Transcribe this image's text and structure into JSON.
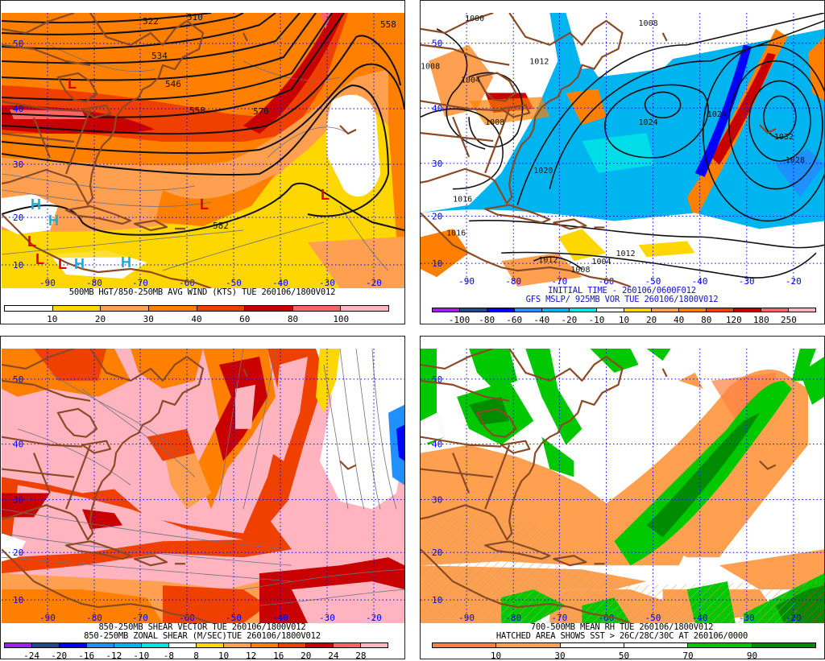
{
  "panels": [
    {
      "id": "tl",
      "caption": [
        "500MB HGT/850-250MB AVG WIND (KTS) TUE 260106/1800V012"
      ],
      "caption_color": "#000000",
      "colorbar": {
        "colors": [
          "#ffffff",
          "#ffd700",
          "#ffa050",
          "#ff8000",
          "#f04000",
          "#c80000",
          "#ff6464",
          "#ffb4c0"
        ],
        "labels": [
          "10",
          "20",
          "30",
          "40",
          "60",
          "80",
          "100"
        ]
      },
      "lat_labels": [
        "50",
        "40",
        "30",
        "20",
        "10"
      ],
      "lon_labels": [
        "-90",
        "-80",
        "-70",
        "-60",
        "-50",
        "-40",
        "-30",
        "-20"
      ],
      "contour_labels": [
        "522",
        "510",
        "534",
        "546",
        "558",
        "570",
        "558",
        "582"
      ],
      "centers": [
        {
          "letter": "L",
          "color": "#e00000"
        },
        {
          "letter": "L",
          "color": "#e00000"
        },
        {
          "letter": "L",
          "color": "#e00000"
        },
        {
          "letter": "H",
          "color": "#10b0e0"
        },
        {
          "letter": "H",
          "color": "#10b0e0"
        },
        {
          "letter": "L",
          "color": "#e00000"
        },
        {
          "letter": "L",
          "color": "#e00000"
        },
        {
          "letter": "L",
          "color": "#e00000"
        },
        {
          "letter": "H",
          "color": "#10b0e0"
        },
        {
          "letter": "H",
          "color": "#10b0e0"
        }
      ]
    },
    {
      "id": "tr",
      "caption": [
        "INITIAL TIME - 260106/0600F012",
        "GFS MSLP/ 925MB VOR TUE 260106/1800V012"
      ],
      "caption_color": "#1010d0",
      "colorbar": {
        "colors": [
          "#a020f0",
          "#1e4b8c",
          "#0000ff",
          "#1e90ff",
          "#00b4f0",
          "#00e6e6",
          "#ffffff",
          "#ffd700",
          "#ffa050",
          "#ff8000",
          "#f04000",
          "#c80000",
          "#ff6464",
          "#ffb4c0"
        ],
        "labels": [
          "-100",
          "-80",
          "-60",
          "-40",
          "-20",
          "-10",
          "10",
          "20",
          "40",
          "80",
          "120",
          "180",
          "250"
        ]
      },
      "lat_labels": [
        "50",
        "40",
        "30",
        "20",
        "10"
      ],
      "lon_labels": [
        "-90",
        "-80",
        "-70",
        "-60",
        "-50",
        "-40",
        "-30",
        "-20"
      ],
      "contour_labels": [
        "1000",
        "1008",
        "1012",
        "1008",
        "1004",
        "1008",
        "1024",
        "1024",
        "1032",
        "1020",
        "1028",
        "1016",
        "1012",
        "1016",
        "1012",
        "1008",
        "1004"
      ]
    },
    {
      "id": "bl",
      "caption": [
        "850-250MB SHEAR VECTOR TUE 260106/1800V012",
        "850-250MB ZONAL SHEAR (M/SEC)TUE 260106/1800V012"
      ],
      "caption_color": "#000000",
      "colorbar": {
        "colors": [
          "#a020f0",
          "#1e4b8c",
          "#0000ff",
          "#1e90ff",
          "#00b4f0",
          "#00e6e6",
          "#ffffff",
          "#ffd700",
          "#ffa050",
          "#ff8000",
          "#f04000",
          "#c80000",
          "#ff6464",
          "#ffb4c0"
        ],
        "labels": [
          "-24",
          "-20",
          "-16",
          "-12",
          "-10",
          "-8",
          "8",
          "10",
          "12",
          "16",
          "20",
          "24",
          "28"
        ]
      },
      "lat_labels": [
        "50",
        "40",
        "30",
        "20",
        "10"
      ],
      "lon_labels": [
        "-90",
        "-80",
        "-70",
        "-60",
        "-50",
        "-40",
        "-30",
        "-20"
      ]
    },
    {
      "id": "br",
      "caption": [
        "700-500MB MEAN RH TUE 260106/1800V012",
        "HATCHED AREA SHOWS SST > 26C/28C/30C AT 260106/0000"
      ],
      "caption_color": "#000000",
      "colorbar": {
        "colors": [
          "#ff8040",
          "#ffa050",
          "#ffffff",
          "#ffffff",
          "#00c800",
          "#008c00"
        ],
        "labels": [
          "10",
          "30",
          "50",
          "70",
          "90"
        ]
      },
      "lat_labels": [
        "50",
        "40",
        "30",
        "20",
        "10"
      ],
      "lon_labels": [
        "-90",
        "-80",
        "-70",
        "-60",
        "-50",
        "-40",
        "-30",
        "-20"
      ]
    }
  ]
}
